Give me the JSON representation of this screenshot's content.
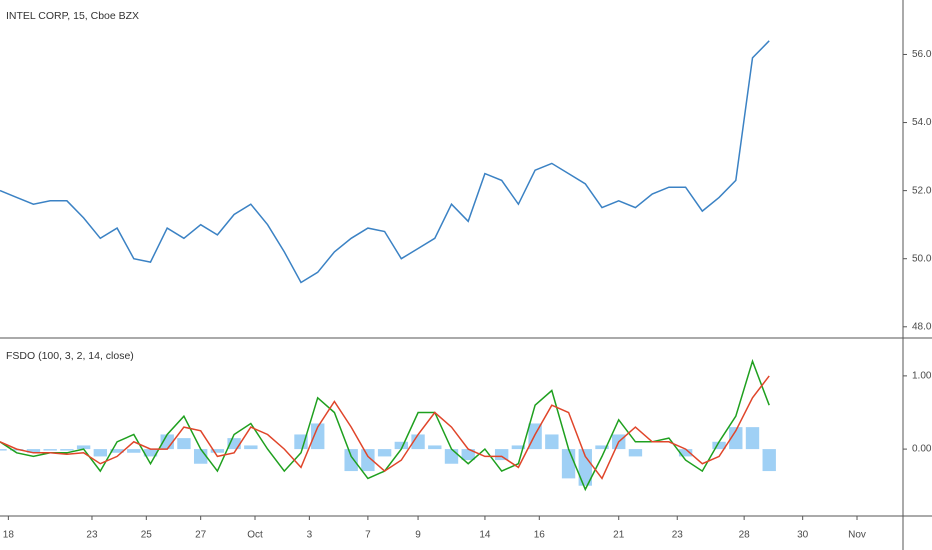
{
  "chart_data": [
    {
      "type": "line",
      "title": "INTEL CORP, 15, Cboe BZX",
      "x": [
        0,
        2,
        4,
        6,
        8,
        10,
        12,
        14,
        16,
        18,
        20,
        22,
        24,
        26,
        28,
        30,
        32,
        34,
        36,
        38,
        40,
        42,
        44,
        46,
        48,
        50,
        52,
        54,
        56,
        58,
        60,
        62,
        64,
        66,
        68,
        70,
        72,
        74,
        76,
        78,
        80,
        82,
        84,
        86,
        88,
        90,
        92
      ],
      "xlim": [
        0,
        108
      ],
      "xticks": [
        {
          "value": 1,
          "label": "18"
        },
        {
          "value": 11,
          "label": "23"
        },
        {
          "value": 17.5,
          "label": "25"
        },
        {
          "value": 24,
          "label": "27"
        },
        {
          "value": 30.5,
          "label": "Oct"
        },
        {
          "value": 37,
          "label": "3"
        },
        {
          "value": 44,
          "label": "7"
        },
        {
          "value": 50,
          "label": "9"
        },
        {
          "value": 58,
          "label": "14"
        },
        {
          "value": 64.5,
          "label": "16"
        },
        {
          "value": 74,
          "label": "21"
        },
        {
          "value": 81,
          "label": "23"
        },
        {
          "value": 89,
          "label": "28"
        },
        {
          "value": 96,
          "label": "30"
        },
        {
          "value": 102.5,
          "label": "Nov"
        }
      ],
      "series": [
        {
          "color": "#3b82c4",
          "values": [
            52.0,
            51.8,
            51.6,
            51.7,
            51.7,
            51.2,
            50.6,
            50.9,
            50.0,
            49.9,
            50.9,
            50.6,
            51.0,
            50.7,
            51.3,
            51.6,
            51.0,
            50.2,
            49.3,
            49.6,
            50.2,
            50.6,
            50.9,
            50.8,
            50.0,
            50.3,
            50.6,
            51.6,
            51.1,
            52.5,
            52.3,
            51.6,
            52.6,
            52.8,
            52.5,
            52.2,
            51.5,
            51.7,
            51.5,
            51.9,
            52.1,
            52.1,
            51.4,
            51.8,
            52.3,
            55.9,
            56.4
          ]
        }
      ],
      "ylim": [
        47.7,
        57.6
      ],
      "yticks": [
        {
          "value": 48,
          "label": "48.00"
        },
        {
          "value": 50,
          "label": "50.00"
        },
        {
          "value": 52,
          "label": "52.00"
        },
        {
          "value": 54,
          "label": "54.00"
        },
        {
          "value": 56,
          "label": "56.00"
        }
      ]
    },
    {
      "type": "line",
      "title": "FSDO (100, 3, 2, 14, close)",
      "histogram": {
        "color": "#9fd0f5",
        "values": [
          -0.02,
          -0.02,
          -0.05,
          -0.02,
          -0.02,
          0.05,
          -0.1,
          -0.05,
          -0.05,
          -0.1,
          0.2,
          0.15,
          -0.2,
          -0.05,
          0.15,
          0.05,
          0.0,
          0.0,
          0.2,
          0.35,
          0.0,
          -0.3,
          -0.3,
          -0.1,
          0.1,
          0.2,
          0.05,
          -0.2,
          -0.15,
          0.0,
          -0.15,
          0.05,
          0.35,
          0.2,
          -0.4,
          -0.5,
          0.05,
          0.2,
          -0.1,
          0.0,
          0.0,
          -0.1,
          0.0,
          0.1,
          0.3,
          0.3,
          -0.3
        ]
      },
      "series": [
        {
          "color": "#1fa01f",
          "values": [
            0.1,
            -0.05,
            -0.1,
            -0.05,
            -0.05,
            0.0,
            -0.3,
            0.1,
            0.2,
            -0.2,
            0.2,
            0.45,
            0.0,
            -0.3,
            0.2,
            0.35,
            0.0,
            -0.3,
            -0.05,
            0.7,
            0.5,
            -0.1,
            -0.4,
            -0.3,
            0.0,
            0.5,
            0.5,
            0.0,
            -0.2,
            0.0,
            -0.3,
            -0.2,
            0.6,
            0.8,
            0.0,
            -0.55,
            -0.1,
            0.4,
            0.1,
            0.1,
            0.15,
            -0.15,
            -0.3,
            0.1,
            0.45,
            1.2,
            0.6
          ]
        },
        {
          "color": "#e0452a",
          "values": [
            0.1,
            0.0,
            -0.05,
            -0.05,
            -0.07,
            -0.05,
            -0.2,
            -0.1,
            0.1,
            0.0,
            0.0,
            0.3,
            0.25,
            -0.1,
            -0.05,
            0.3,
            0.2,
            0.0,
            -0.25,
            0.3,
            0.65,
            0.3,
            -0.1,
            -0.3,
            -0.15,
            0.2,
            0.5,
            0.3,
            0.0,
            -0.1,
            -0.1,
            -0.25,
            0.2,
            0.6,
            0.5,
            -0.1,
            -0.4,
            0.1,
            0.3,
            0.1,
            0.1,
            0.0,
            -0.2,
            -0.1,
            0.25,
            0.7,
            1.0
          ]
        }
      ],
      "ylim": [
        -0.9,
        1.49
      ],
      "yticks": [
        {
          "value": 0,
          "label": "0.00"
        },
        {
          "value": 1,
          "label": "1.00"
        }
      ]
    }
  ]
}
